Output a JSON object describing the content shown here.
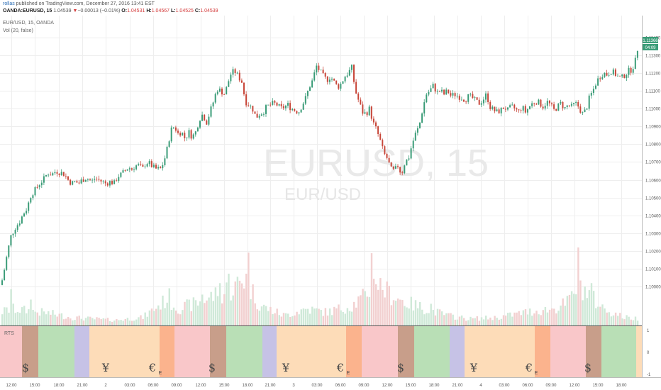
{
  "header": {
    "author": "rollas",
    "published": " published on TradingView.com, December 27, 2016 13:41 EST",
    "symbol": "OANDA:EURUSD, 15",
    "last": "1.04539",
    "change_arrow": "▼",
    "change": "−0.00013 (−0.01%)",
    "o_label": "O:",
    "o_val": "1.04531",
    "h_label": "H:",
    "h_val": "1.04567",
    "l_label": "L:",
    "l_val": "1.04525",
    "c_label": "C:",
    "c_val": "1.04539"
  },
  "chart_data": {
    "type": "candlestick",
    "title": "EUR/USD, 15, OANDA",
    "indicator": "Vol (20, false)",
    "watermark": "EURUSD, 15",
    "watermark_sub": "EUR/USD",
    "price_axis": [
      "1.11400",
      "1.11300",
      "1.11200",
      "1.11100",
      "1.11000",
      "1.10900",
      "1.10800",
      "1.10700",
      "1.10600",
      "1.10500",
      "1.10400",
      "1.10300",
      "1.10200",
      "1.10100",
      "1.10000"
    ],
    "ylim": [
      1.0993,
      1.1145
    ],
    "last_price_tag": "1.11366",
    "countdown_tag": "04:09",
    "price_path": [
      [
        0,
        1.1001
      ],
      [
        3,
        1.1005
      ],
      [
        8,
        1.1016
      ],
      [
        14,
        1.1028
      ],
      [
        20,
        1.1033
      ],
      [
        26,
        1.1036
      ],
      [
        32,
        1.1041
      ],
      [
        37,
        1.1044
      ],
      [
        43,
        1.1052
      ],
      [
        48,
        1.1054
      ],
      [
        55,
        1.1058
      ],
      [
        62,
        1.1061
      ],
      [
        66,
        1.1064
      ],
      [
        72,
        1.1063
      ],
      [
        78,
        1.1065
      ],
      [
        85,
        1.1064
      ],
      [
        90,
        1.1063
      ],
      [
        95,
        1.106
      ],
      [
        100,
        1.1058
      ],
      [
        105,
        1.1059
      ],
      [
        110,
        1.1058
      ],
      [
        115,
        1.106
      ],
      [
        120,
        1.1061
      ],
      [
        125,
        1.106
      ],
      [
        128,
        1.1059
      ],
      [
        133,
        1.1061
      ],
      [
        138,
        1.106
      ],
      [
        143,
        1.1059
      ],
      [
        148,
        1.1058
      ],
      [
        155,
        1.1059
      ],
      [
        160,
        1.1058
      ],
      [
        165,
        1.1062
      ],
      [
        170,
        1.1063
      ],
      [
        175,
        1.1065
      ],
      [
        180,
        1.1067
      ],
      [
        185,
        1.1066
      ],
      [
        190,
        1.1068
      ],
      [
        195,
        1.1068
      ],
      [
        200,
        1.1066
      ],
      [
        205,
        1.107
      ],
      [
        210,
        1.1069
      ],
      [
        215,
        1.1067
      ],
      [
        220,
        1.1066
      ],
      [
        225,
        1.1066
      ],
      [
        230,
        1.107
      ],
      [
        235,
        1.1078
      ],
      [
        240,
        1.1088
      ],
      [
        245,
        1.109
      ],
      [
        250,
        1.1086
      ],
      [
        255,
        1.1087
      ],
      [
        260,
        1.1083
      ],
      [
        265,
        1.1087
      ],
      [
        270,
        1.1084
      ],
      [
        275,
        1.1087
      ],
      [
        280,
        1.1094
      ],
      [
        285,
        1.1097
      ],
      [
        290,
        1.1092
      ],
      [
        295,
        1.1098
      ],
      [
        300,
        1.1104
      ],
      [
        305,
        1.1111
      ],
      [
        310,
        1.111
      ],
      [
        316,
        1.1108
      ],
      [
        320,
        1.1114
      ],
      [
        325,
        1.112
      ],
      [
        330,
        1.1121
      ],
      [
        335,
        1.1118
      ],
      [
        340,
        1.1115
      ],
      [
        345,
        1.1104
      ],
      [
        350,
        1.1102
      ],
      [
        355,
        1.11
      ],
      [
        360,
        1.1095
      ],
      [
        365,
        1.1097
      ],
      [
        370,
        1.1098
      ],
      [
        375,
        1.1101
      ],
      [
        380,
        1.1102
      ],
      [
        385,
        1.1103
      ],
      [
        390,
        1.1102
      ],
      [
        395,
        1.11
      ],
      [
        400,
        1.1101
      ],
      [
        405,
        1.1102
      ],
      [
        410,
        1.11
      ],
      [
        415,
        1.1099
      ],
      [
        420,
        1.1098
      ],
      [
        425,
        1.1102
      ],
      [
        430,
        1.1106
      ],
      [
        435,
        1.1112
      ],
      [
        440,
        1.1116
      ],
      [
        445,
        1.1124
      ],
      [
        450,
        1.1121
      ],
      [
        455,
        1.1118
      ],
      [
        460,
        1.1116
      ],
      [
        465,
        1.1118
      ],
      [
        470,
        1.1115
      ],
      [
        475,
        1.1112
      ],
      [
        480,
        1.1114
      ],
      [
        485,
        1.1118
      ],
      [
        490,
        1.112
      ],
      [
        495,
        1.1123
      ],
      [
        500,
        1.111
      ],
      [
        505,
        1.1104
      ],
      [
        510,
        1.1098
      ],
      [
        515,
        1.1097
      ],
      [
        520,
        1.11
      ],
      [
        525,
        1.1092
      ],
      [
        530,
        1.1088
      ],
      [
        535,
        1.1082
      ],
      [
        540,
        1.1075
      ],
      [
        545,
        1.1072
      ],
      [
        550,
        1.1066
      ],
      [
        555,
        1.1065
      ],
      [
        560,
        1.1068
      ],
      [
        565,
        1.1063
      ],
      [
        570,
        1.107
      ],
      [
        575,
        1.1072
      ],
      [
        580,
        1.108
      ],
      [
        585,
        1.1086
      ],
      [
        590,
        1.109
      ],
      [
        595,
        1.11
      ],
      [
        600,
        1.1108
      ],
      [
        605,
        1.111
      ],
      [
        610,
        1.1113
      ],
      [
        615,
        1.1109
      ],
      [
        620,
        1.111
      ],
      [
        625,
        1.1108
      ],
      [
        630,
        1.111
      ],
      [
        635,
        1.1107
      ],
      [
        640,
        1.1108
      ],
      [
        645,
        1.1107
      ],
      [
        650,
        1.1106
      ],
      [
        655,
        1.1105
      ],
      [
        660,
        1.1107
      ],
      [
        665,
        1.1106
      ],
      [
        670,
        1.1104
      ],
      [
        675,
        1.1103
      ],
      [
        680,
        1.1105
      ],
      [
        685,
        1.1108
      ],
      [
        690,
        1.1101
      ],
      [
        695,
        1.1099
      ],
      [
        700,
        1.1098
      ],
      [
        705,
        1.1099
      ],
      [
        710,
        1.1101
      ],
      [
        715,
        1.1099
      ],
      [
        720,
        1.1101
      ],
      [
        725,
        1.11
      ],
      [
        730,
        1.1098
      ],
      [
        735,
        1.1101
      ],
      [
        740,
        1.1098
      ],
      [
        745,
        1.1101
      ],
      [
        750,
        1.1103
      ],
      [
        755,
        1.1104
      ],
      [
        760,
        1.1103
      ],
      [
        765,
        1.1101
      ],
      [
        770,
        1.1104
      ],
      [
        775,
        1.1102
      ],
      [
        780,
        1.1099
      ],
      [
        785,
        1.1101
      ],
      [
        790,
        1.1103
      ],
      [
        795,
        1.11
      ],
      [
        800,
        1.1102
      ],
      [
        805,
        1.1101
      ],
      [
        810,
        1.1103
      ],
      [
        815,
        1.1101
      ],
      [
        820,
        1.1097
      ],
      [
        825,
        1.1099
      ],
      [
        830,
        1.1106
      ],
      [
        835,
        1.111
      ],
      [
        840,
        1.1115
      ],
      [
        845,
        1.1118
      ],
      [
        850,
        1.112
      ],
      [
        855,
        1.1119
      ],
      [
        860,
        1.1121
      ],
      [
        865,
        1.112
      ],
      [
        870,
        1.1118
      ],
      [
        875,
        1.1117
      ],
      [
        880,
        1.1119
      ],
      [
        885,
        1.1121
      ],
      [
        890,
        1.1122
      ],
      [
        895,
        1.1127
      ],
      [
        900,
        1.1138
      ],
      [
        905,
        1.1136
      ],
      [
        910,
        1.1135
      ]
    ],
    "volume_profile": [
      [
        0,
        0.2
      ],
      [
        15,
        0.25
      ],
      [
        40,
        0.22
      ],
      [
        70,
        0.18
      ],
      [
        100,
        0.12
      ],
      [
        130,
        0.1
      ],
      [
        160,
        0.08
      ],
      [
        200,
        0.12
      ],
      [
        235,
        0.4
      ],
      [
        250,
        0.25
      ],
      [
        280,
        0.35
      ],
      [
        300,
        0.45
      ],
      [
        320,
        0.5
      ],
      [
        345,
        0.7
      ],
      [
        365,
        0.3
      ],
      [
        400,
        0.15
      ],
      [
        430,
        0.25
      ],
      [
        460,
        0.2
      ],
      [
        495,
        0.3
      ],
      [
        515,
        0.45
      ],
      [
        525,
        0.7
      ],
      [
        545,
        0.5
      ],
      [
        570,
        0.35
      ],
      [
        600,
        0.25
      ],
      [
        630,
        0.15
      ],
      [
        660,
        0.1
      ],
      [
        700,
        0.12
      ],
      [
        740,
        0.2
      ],
      [
        780,
        0.25
      ],
      [
        800,
        0.35
      ],
      [
        815,
        0.65
      ],
      [
        830,
        0.45
      ],
      [
        850,
        0.25
      ],
      [
        880,
        0.12
      ],
      [
        905,
        0.1
      ]
    ],
    "volume_peaks": [
      [
        15,
        0.55
      ],
      [
        43,
        0.55
      ],
      [
        236,
        0.42
      ],
      [
        285,
        0.52
      ],
      [
        307,
        0.55
      ],
      [
        320,
        0.65
      ],
      [
        348,
        0.95
      ],
      [
        524,
        0.95
      ],
      [
        540,
        0.55
      ],
      [
        606,
        0.3
      ],
      [
        815,
        0.95
      ],
      [
        832,
        0.62
      ]
    ],
    "sessions_indicator": {
      "label": "RTS",
      "y_ticks": [
        "1",
        "0",
        "-1"
      ],
      "bands": [
        {
          "start": 0,
          "end": 31,
          "color": "#f9c7c9"
        },
        {
          "start": 31,
          "end": 54,
          "color": "#c89e8a"
        },
        {
          "start": 54,
          "end": 105,
          "color": "#b9dfb6"
        },
        {
          "start": 105,
          "end": 126,
          "color": "#c6c2e6"
        },
        {
          "start": 126,
          "end": 225,
          "color": "#fddcb8"
        },
        {
          "start": 225,
          "end": 246,
          "color": "#fbb38d"
        },
        {
          "start": 246,
          "end": 296,
          "color": "#f9c7c9"
        },
        {
          "start": 296,
          "end": 319,
          "color": "#c89e8a"
        },
        {
          "start": 319,
          "end": 370,
          "color": "#b9dfb6"
        },
        {
          "start": 370,
          "end": 390,
          "color": "#c6c2e6"
        },
        {
          "start": 390,
          "end": 488,
          "color": "#fddcb8"
        },
        {
          "start": 488,
          "end": 510,
          "color": "#fbb38d"
        },
        {
          "start": 510,
          "end": 561,
          "color": "#f9c7c9"
        },
        {
          "start": 561,
          "end": 584,
          "color": "#c89e8a"
        },
        {
          "start": 584,
          "end": 634,
          "color": "#b9dfb6"
        },
        {
          "start": 634,
          "end": 655,
          "color": "#c6c2e6"
        },
        {
          "start": 655,
          "end": 754,
          "color": "#fddcb8"
        },
        {
          "start": 754,
          "end": 776,
          "color": "#fbb38d"
        },
        {
          "start": 776,
          "end": 826,
          "color": "#f9c7c9"
        },
        {
          "start": 826,
          "end": 848,
          "color": "#c89e8a"
        },
        {
          "start": 848,
          "end": 897,
          "color": "#b9dfb6"
        },
        {
          "start": 897,
          "end": 905,
          "color": "#fddcb8"
        }
      ],
      "glyphs": [
        {
          "x": 36,
          "text": "$"
        },
        {
          "x": 149,
          "text": "¥"
        },
        {
          "x": 215,
          "text": "€"
        },
        {
          "x": 299,
          "text": "$"
        },
        {
          "x": 403,
          "text": "¥"
        },
        {
          "x": 480,
          "text": "€"
        },
        {
          "x": 565,
          "text": "$"
        },
        {
          "x": 668,
          "text": "¥"
        },
        {
          "x": 746,
          "text": "€"
        },
        {
          "x": 829,
          "text": "$"
        }
      ],
      "small_marks": [
        {
          "x": 226,
          "text": "E"
        },
        {
          "x": 491,
          "text": "E"
        },
        {
          "x": 756,
          "text": "E"
        }
      ]
    },
    "time_axis": [
      {
        "x": 16,
        "label": "12:00"
      },
      {
        "x": 49,
        "label": "15:00"
      },
      {
        "x": 83,
        "label": "18:00"
      },
      {
        "x": 116,
        "label": "21:00"
      },
      {
        "x": 149,
        "label": "2"
      },
      {
        "x": 183,
        "label": "03:00"
      },
      {
        "x": 216,
        "label": "06:00"
      },
      {
        "x": 249,
        "label": "09:00"
      },
      {
        "x": 283,
        "label": "12:00"
      },
      {
        "x": 316,
        "label": "15:00"
      },
      {
        "x": 349,
        "label": "18:00"
      },
      {
        "x": 381,
        "label": "21:00"
      },
      {
        "x": 414,
        "label": "3"
      },
      {
        "x": 447,
        "label": "03:00"
      },
      {
        "x": 480,
        "label": "06:00"
      },
      {
        "x": 513,
        "label": "09:00"
      },
      {
        "x": 546,
        "label": "12:00"
      },
      {
        "x": 579,
        "label": "15:00"
      },
      {
        "x": 612,
        "label": "18:00"
      },
      {
        "x": 645,
        "label": "21:00"
      },
      {
        "x": 678,
        "label": "4"
      },
      {
        "x": 711,
        "label": "03:00"
      },
      {
        "x": 744,
        "label": "06:00"
      },
      {
        "x": 777,
        "label": "09:00"
      },
      {
        "x": 810,
        "label": "12:00"
      },
      {
        "x": 843,
        "label": "15:00"
      },
      {
        "x": 876,
        "label": "18:00"
      }
    ]
  },
  "colors": {
    "up": "#3b9c78",
    "down": "#c8473a",
    "vol_up": "#cfe9d8",
    "vol_down": "#f2d0d0",
    "grid": "#eeeeee",
    "last_tag": "#3b9c78"
  }
}
